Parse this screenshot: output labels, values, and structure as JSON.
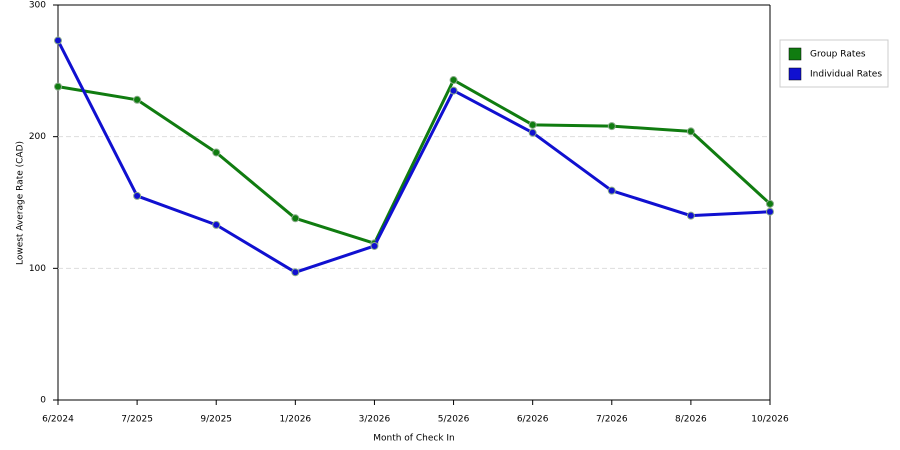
{
  "chart_data": {
    "type": "line",
    "x_label": "Month of Check In",
    "y_label": "Lowest Average Rate (CAD)",
    "categories": [
      "6/2024",
      "7/2025",
      "9/2025",
      "1/2026",
      "3/2026",
      "5/2026",
      "6/2026",
      "7/2026",
      "8/2026",
      "10/2026"
    ],
    "series": [
      {
        "name": "Group Rates",
        "color": "#107c10",
        "values": [
          238,
          228,
          188,
          138,
          119,
          243,
          209,
          208,
          204,
          149
        ]
      },
      {
        "name": "Individual Rates",
        "color": "#1010d0",
        "values": [
          273,
          155,
          133,
          97,
          117,
          235,
          203,
          159,
          140,
          143
        ]
      }
    ],
    "ylim": [
      0,
      300
    ],
    "yticks": [
      0,
      100,
      200,
      300
    ],
    "grid": true,
    "legend": "right"
  }
}
